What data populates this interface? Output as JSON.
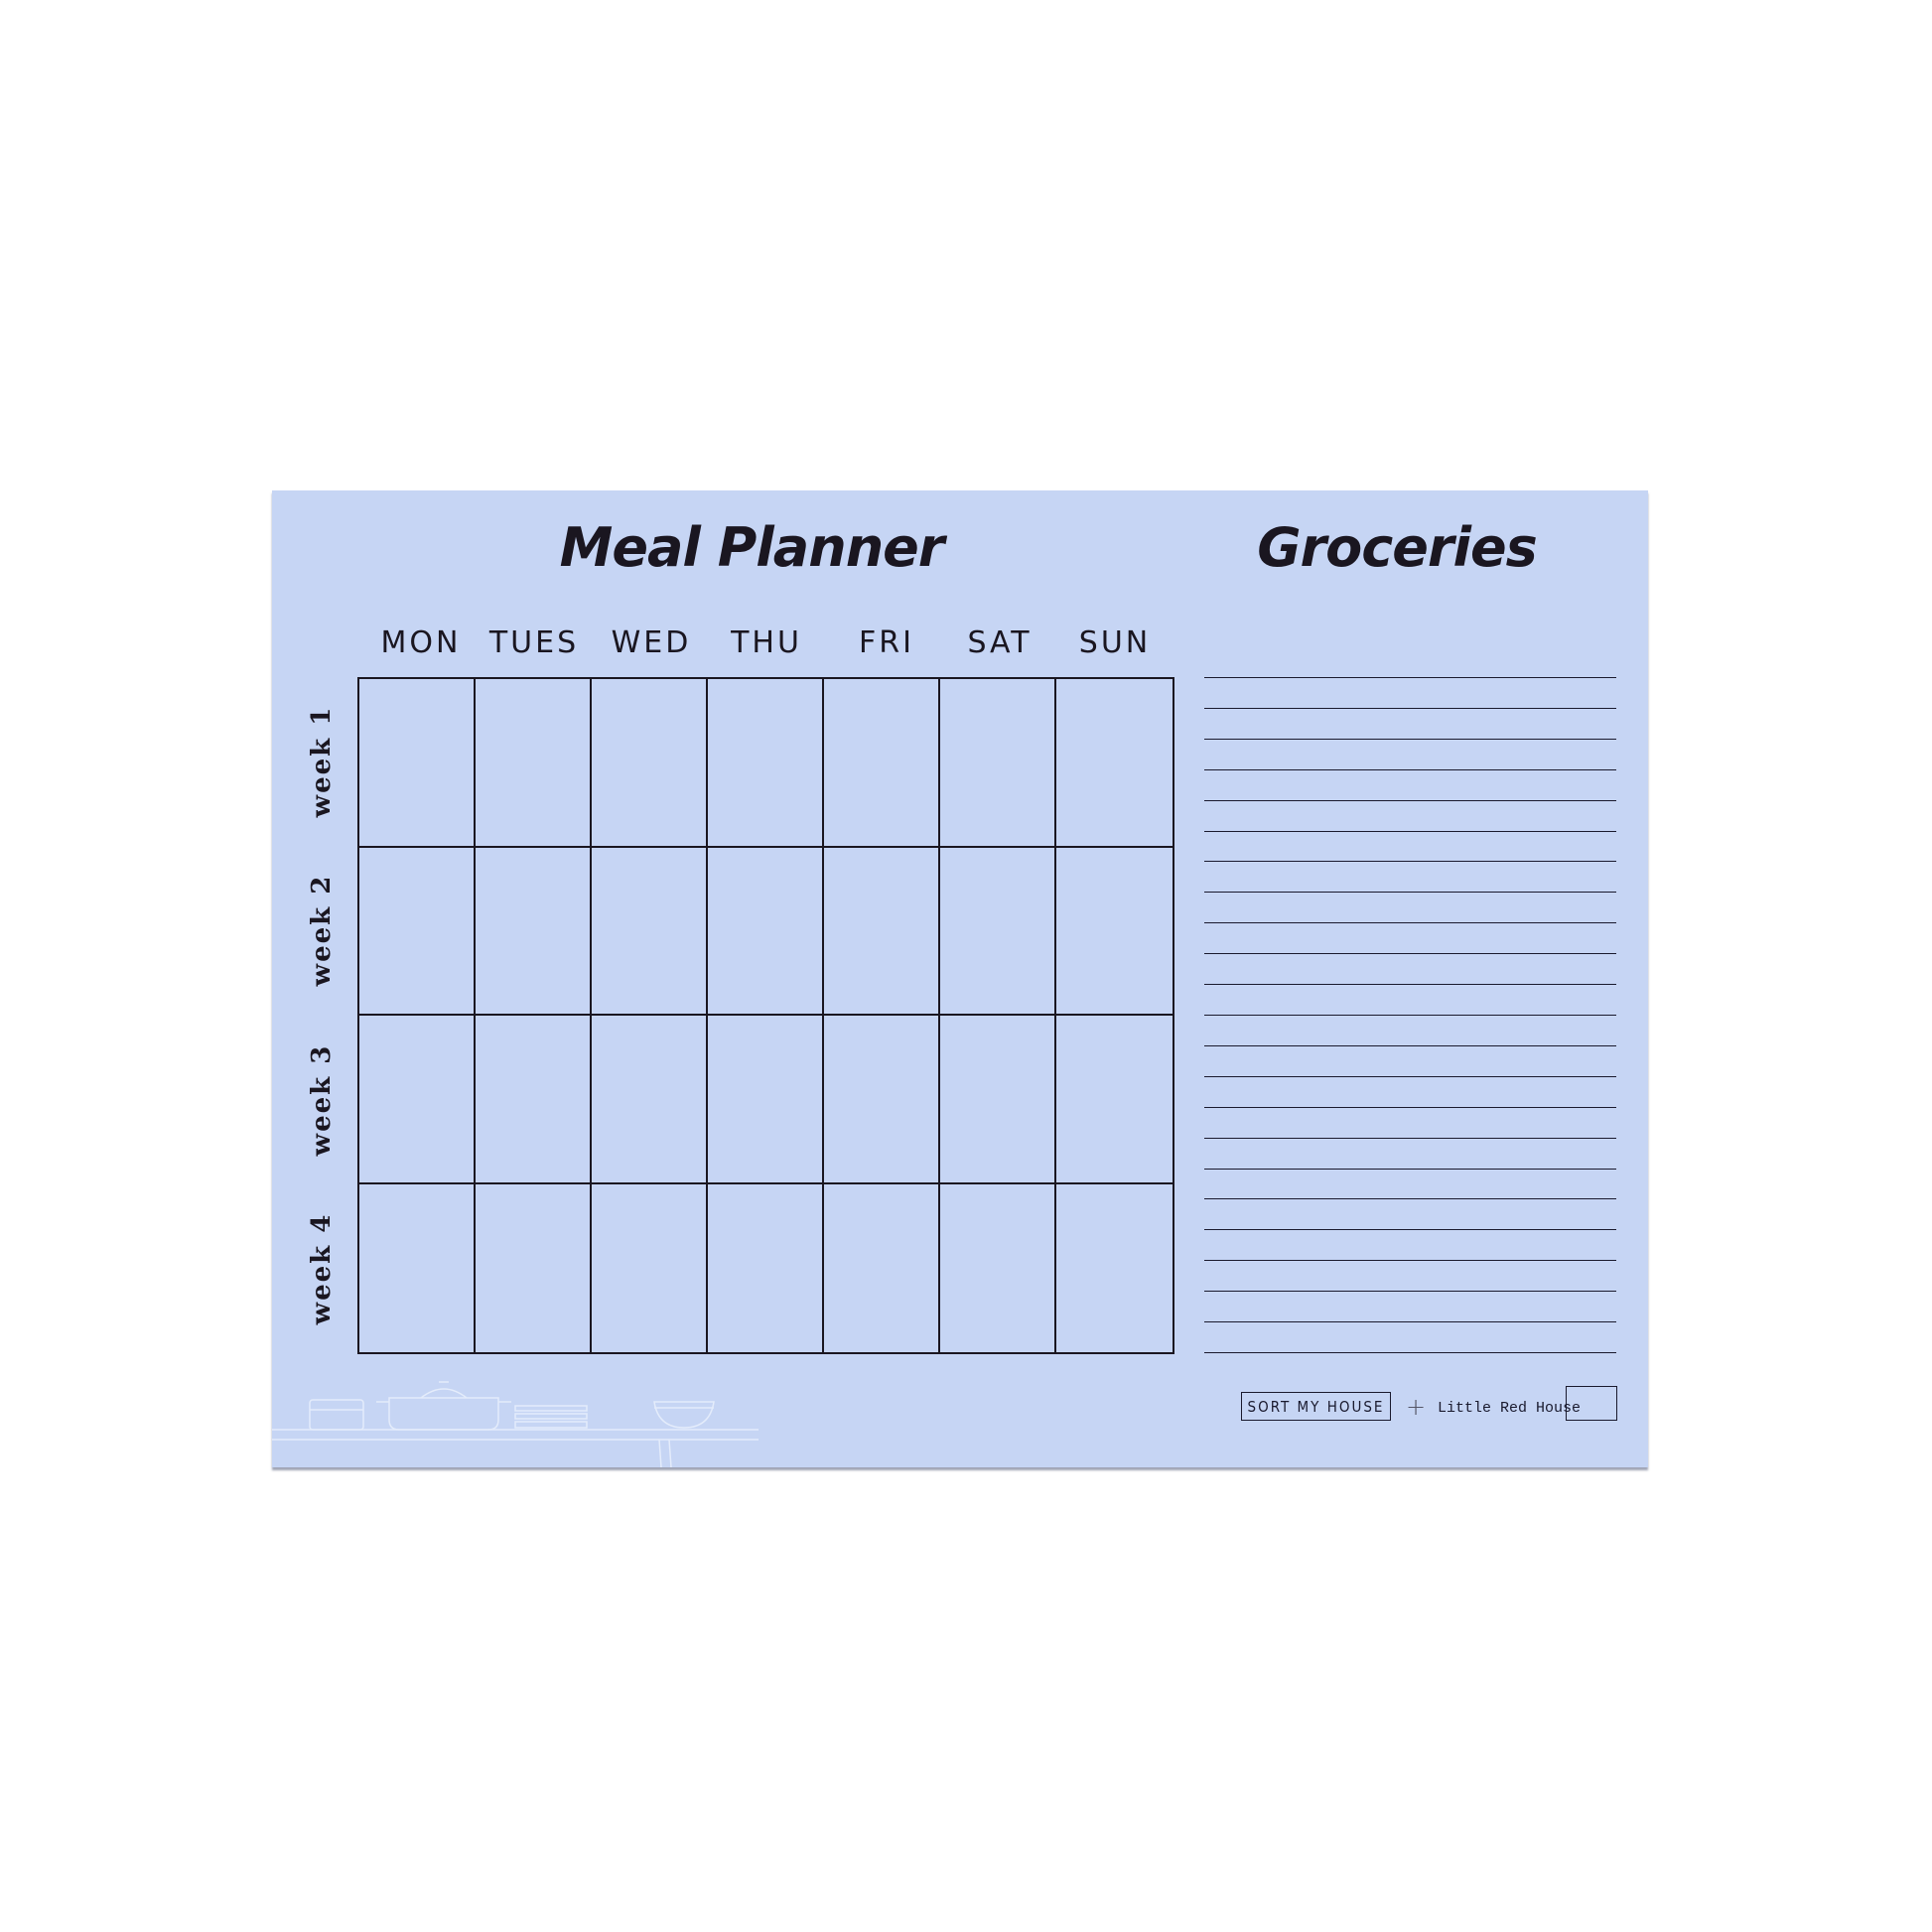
{
  "planner": {
    "title": "Meal Planner",
    "days": [
      "MON",
      "TUES",
      "WED",
      "THU",
      "FRI",
      "SAT",
      "SUN"
    ],
    "weeks": [
      "week 1",
      "week 2",
      "week 3",
      "week 4"
    ]
  },
  "groceries": {
    "title": "Groceries",
    "line_count": 23
  },
  "footer": {
    "brand": "SORT MY HOUSE",
    "partner": "Little Red House"
  },
  "colors": {
    "paper": "#c6d5f4",
    "ink": "#1a1620",
    "background": "#ffffff"
  }
}
